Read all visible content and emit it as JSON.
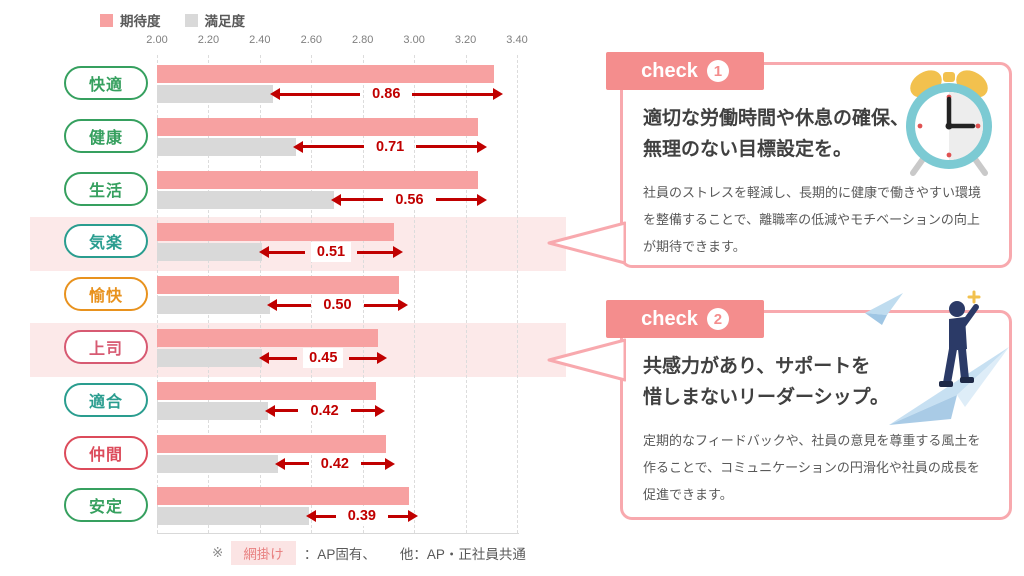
{
  "theme": {
    "accent_pink": "#F48D8D",
    "border_pink": "#F8A9AE",
    "arrow_red": "#C00000",
    "band_pink": "#FCE9E9",
    "bar_pink": "#F7A1A1",
    "bar_gray": "#D9D9D9",
    "shade_bg": "#FBE4E4",
    "shade_text": "#E88080"
  },
  "chart_data": {
    "type": "bar",
    "orientation": "horizontal",
    "series_names": [
      "期待度",
      "満足度"
    ],
    "axis": {
      "min": 2.0,
      "max": 3.4,
      "ticks": [
        "2.00",
        "2.20",
        "2.40",
        "2.60",
        "2.80",
        "3.00",
        "3.20",
        "3.40"
      ],
      "grid": "dashed-vertical"
    },
    "colors": {
      "expectation": "#F7A1A1",
      "satisfaction": "#D9D9D9",
      "gap_arrow": "#C00000",
      "highlight_band": "#FCE9E9"
    },
    "rows": [
      {
        "label": "快適",
        "pill_color": "#36A05F",
        "expectation": 3.31,
        "satisfaction": 2.45,
        "gap": "0.86",
        "highlight": false
      },
      {
        "label": "健康",
        "pill_color": "#36A05F",
        "expectation": 3.25,
        "satisfaction": 2.54,
        "gap": "0.71",
        "highlight": false
      },
      {
        "label": "生活",
        "pill_color": "#36A05F",
        "expectation": 3.25,
        "satisfaction": 2.69,
        "gap": "0.56",
        "highlight": false
      },
      {
        "label": "気楽",
        "pill_color": "#2A9D8F",
        "expectation": 2.92,
        "satisfaction": 2.41,
        "gap": "0.51",
        "highlight": true
      },
      {
        "label": "愉快",
        "pill_color": "#E8921E",
        "expectation": 2.94,
        "satisfaction": 2.44,
        "gap": "0.50",
        "highlight": false
      },
      {
        "label": "上司",
        "pill_color": "#D75A72",
        "expectation": 2.86,
        "satisfaction": 2.41,
        "gap": "0.45",
        "highlight": true
      },
      {
        "label": "適合",
        "pill_color": "#2A9D8F",
        "expectation": 2.85,
        "satisfaction": 2.43,
        "gap": "0.42",
        "highlight": false
      },
      {
        "label": "仲間",
        "pill_color": "#DC4B5B",
        "expectation": 2.89,
        "satisfaction": 2.47,
        "gap": "0.42",
        "highlight": false
      },
      {
        "label": "安定",
        "pill_color": "#36A05F",
        "expectation": 2.98,
        "satisfaction": 2.59,
        "gap": "0.39",
        "highlight": false
      }
    ]
  },
  "footnote": {
    "prefix": "※",
    "shaded_label": "網掛け",
    "shaded_desc": "：AP固有、",
    "other_desc": "他：AP・正社員共通"
  },
  "callouts": [
    {
      "tag": "check",
      "number": "1",
      "title_lines": [
        "適切な労働時間や休息の確保、",
        "無理のない目標設定を。"
      ],
      "body": "社員のストレスを軽減し、長期的に健康で働きやすい環境を整備することで、離職率の低減やモチベーションの向上が期待できます。",
      "illustration": "alarm-clock-icon"
    },
    {
      "tag": "check",
      "number": "2",
      "title_lines": [
        "共感力があり、サポートを",
        "惜しまないリーダーシップ。"
      ],
      "body": "定期的なフィードバックや、社員の意見を尊重する風土を作ることで、コミュニケーションの円滑化や社員の成長を促進できます。",
      "illustration": "paper-plane-person-icon"
    }
  ]
}
